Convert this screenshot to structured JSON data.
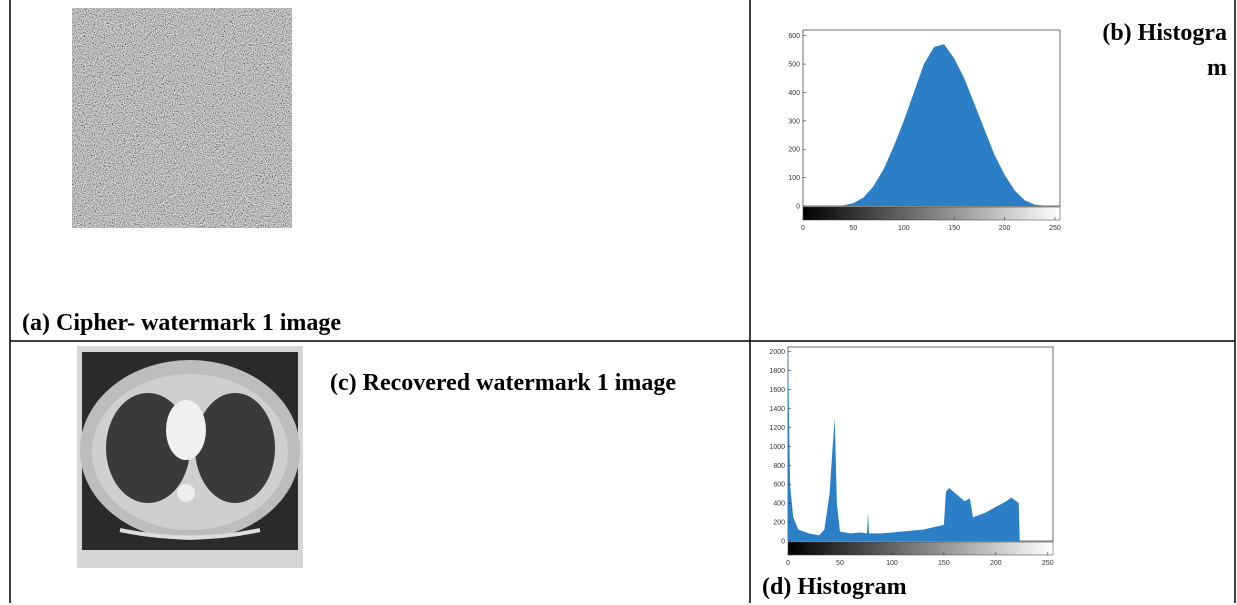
{
  "panels": [
    {
      "caption": "(a) Cipher- watermark 1 image"
    },
    {
      "caption": "(b) Histogram",
      "chart": {
        "type": "area",
        "color": "#2a7fc6",
        "x": [
          0,
          10,
          20,
          30,
          40,
          50,
          60,
          70,
          80,
          90,
          100,
          110,
          120,
          130,
          140,
          150,
          160,
          170,
          180,
          190,
          200,
          210,
          220,
          230,
          240,
          250,
          255
        ],
        "values": [
          0,
          0,
          0,
          0,
          2,
          10,
          30,
          70,
          130,
          210,
          300,
          400,
          500,
          560,
          570,
          520,
          450,
          360,
          270,
          180,
          110,
          55,
          20,
          5,
          1,
          0,
          0
        ],
        "xlim": [
          0,
          255
        ],
        "ylim": [
          0,
          620
        ],
        "xticks": [
          0,
          50,
          100,
          150,
          200,
          250
        ],
        "yticks": [
          0,
          100,
          200,
          300,
          400,
          500,
          600
        ]
      }
    },
    {
      "caption": "(c) Recovered watermark 1 image"
    },
    {
      "caption": "(d) Histogram",
      "chart": {
        "type": "area",
        "color": "#2a7fc6",
        "x": [
          0,
          2,
          5,
          10,
          20,
          30,
          35,
          40,
          43,
          45,
          47,
          50,
          60,
          70,
          76,
          77,
          78,
          90,
          110,
          130,
          150,
          152,
          155,
          170,
          175,
          178,
          190,
          210,
          215,
          222,
          223,
          255
        ],
        "values": [
          2000,
          600,
          250,
          120,
          80,
          60,
          120,
          500,
          1000,
          1300,
          400,
          100,
          80,
          90,
          80,
          300,
          80,
          80,
          100,
          120,
          170,
          520,
          560,
          420,
          450,
          250,
          300,
          420,
          460,
          400,
          0,
          0
        ],
        "xlim": [
          0,
          255
        ],
        "ylim": [
          0,
          2050
        ],
        "xticks": [
          0,
          50,
          100,
          150,
          200,
          250
        ],
        "yticks": [
          0,
          200,
          400,
          600,
          800,
          1000,
          1200,
          1400,
          1600,
          1800,
          2000
        ]
      }
    }
  ]
}
